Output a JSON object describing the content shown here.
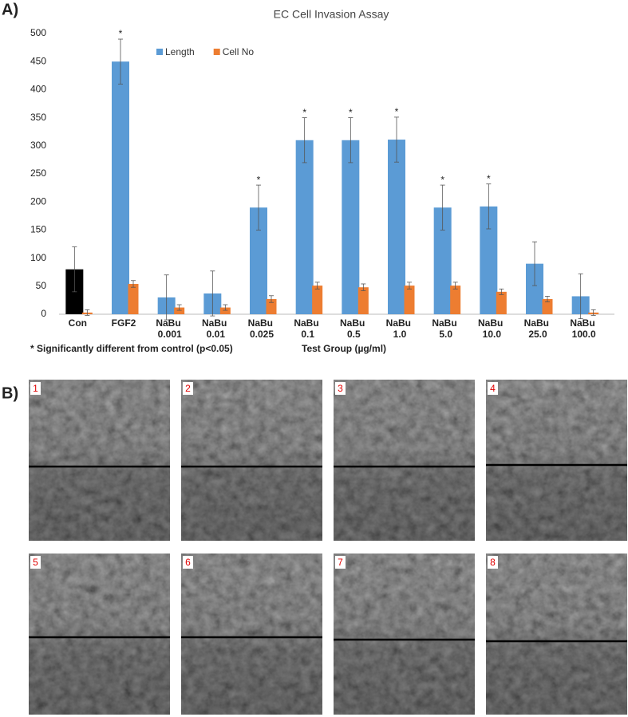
{
  "panel_labels": [
    "A)",
    "B)"
  ],
  "chart_data": {
    "type": "bar",
    "title": "EC Cell Invasion Assay",
    "categories": [
      "Con",
      "FGF2",
      "NaBu 0.001",
      "NaBu 0.01",
      "NaBu 0.025",
      "NaBu 0.1",
      "NaBu 0.5",
      "NaBu 1.0",
      "NaBu 5.0",
      "NaBu 10.0",
      "NaBu 25.0",
      "NaBu 100.0"
    ],
    "series": [
      {
        "name": "Length",
        "color": "#5b9bd5",
        "point_colors": [
          "#000000",
          null,
          null,
          null,
          null,
          null,
          null,
          null,
          null,
          null,
          null,
          null
        ],
        "values": [
          80,
          450,
          30,
          37,
          190,
          310,
          310,
          311,
          190,
          192,
          90,
          32
        ],
        "errors": [
          40,
          40,
          40,
          40,
          40,
          40,
          40,
          40,
          40,
          40,
          39,
          40
        ],
        "value_annotations": [
          null,
          "*",
          null,
          null,
          "*",
          "*",
          "*",
          "*",
          "*",
          "*",
          null,
          null
        ]
      },
      {
        "name": "Cell No",
        "color": "#ed7d31",
        "values": [
          3,
          54,
          12,
          12,
          27,
          51,
          48,
          51,
          51,
          40,
          27,
          3
        ],
        "errors": [
          5,
          6,
          5,
          5,
          6,
          6,
          6,
          6,
          6,
          5,
          5,
          5
        ]
      }
    ],
    "ylim": [
      0,
      500
    ],
    "yticks": [
      0,
      50,
      100,
      150,
      200,
      250,
      300,
      350,
      400,
      450,
      500
    ],
    "grid": false,
    "legend": "upper center",
    "footnote": "* Significantly different from control (p<0.05)",
    "xlabel": "Test Group (µg/ml)"
  },
  "images": {
    "labels": [
      "1",
      "2",
      "3",
      "4",
      "5",
      "6",
      "7",
      "8"
    ]
  }
}
